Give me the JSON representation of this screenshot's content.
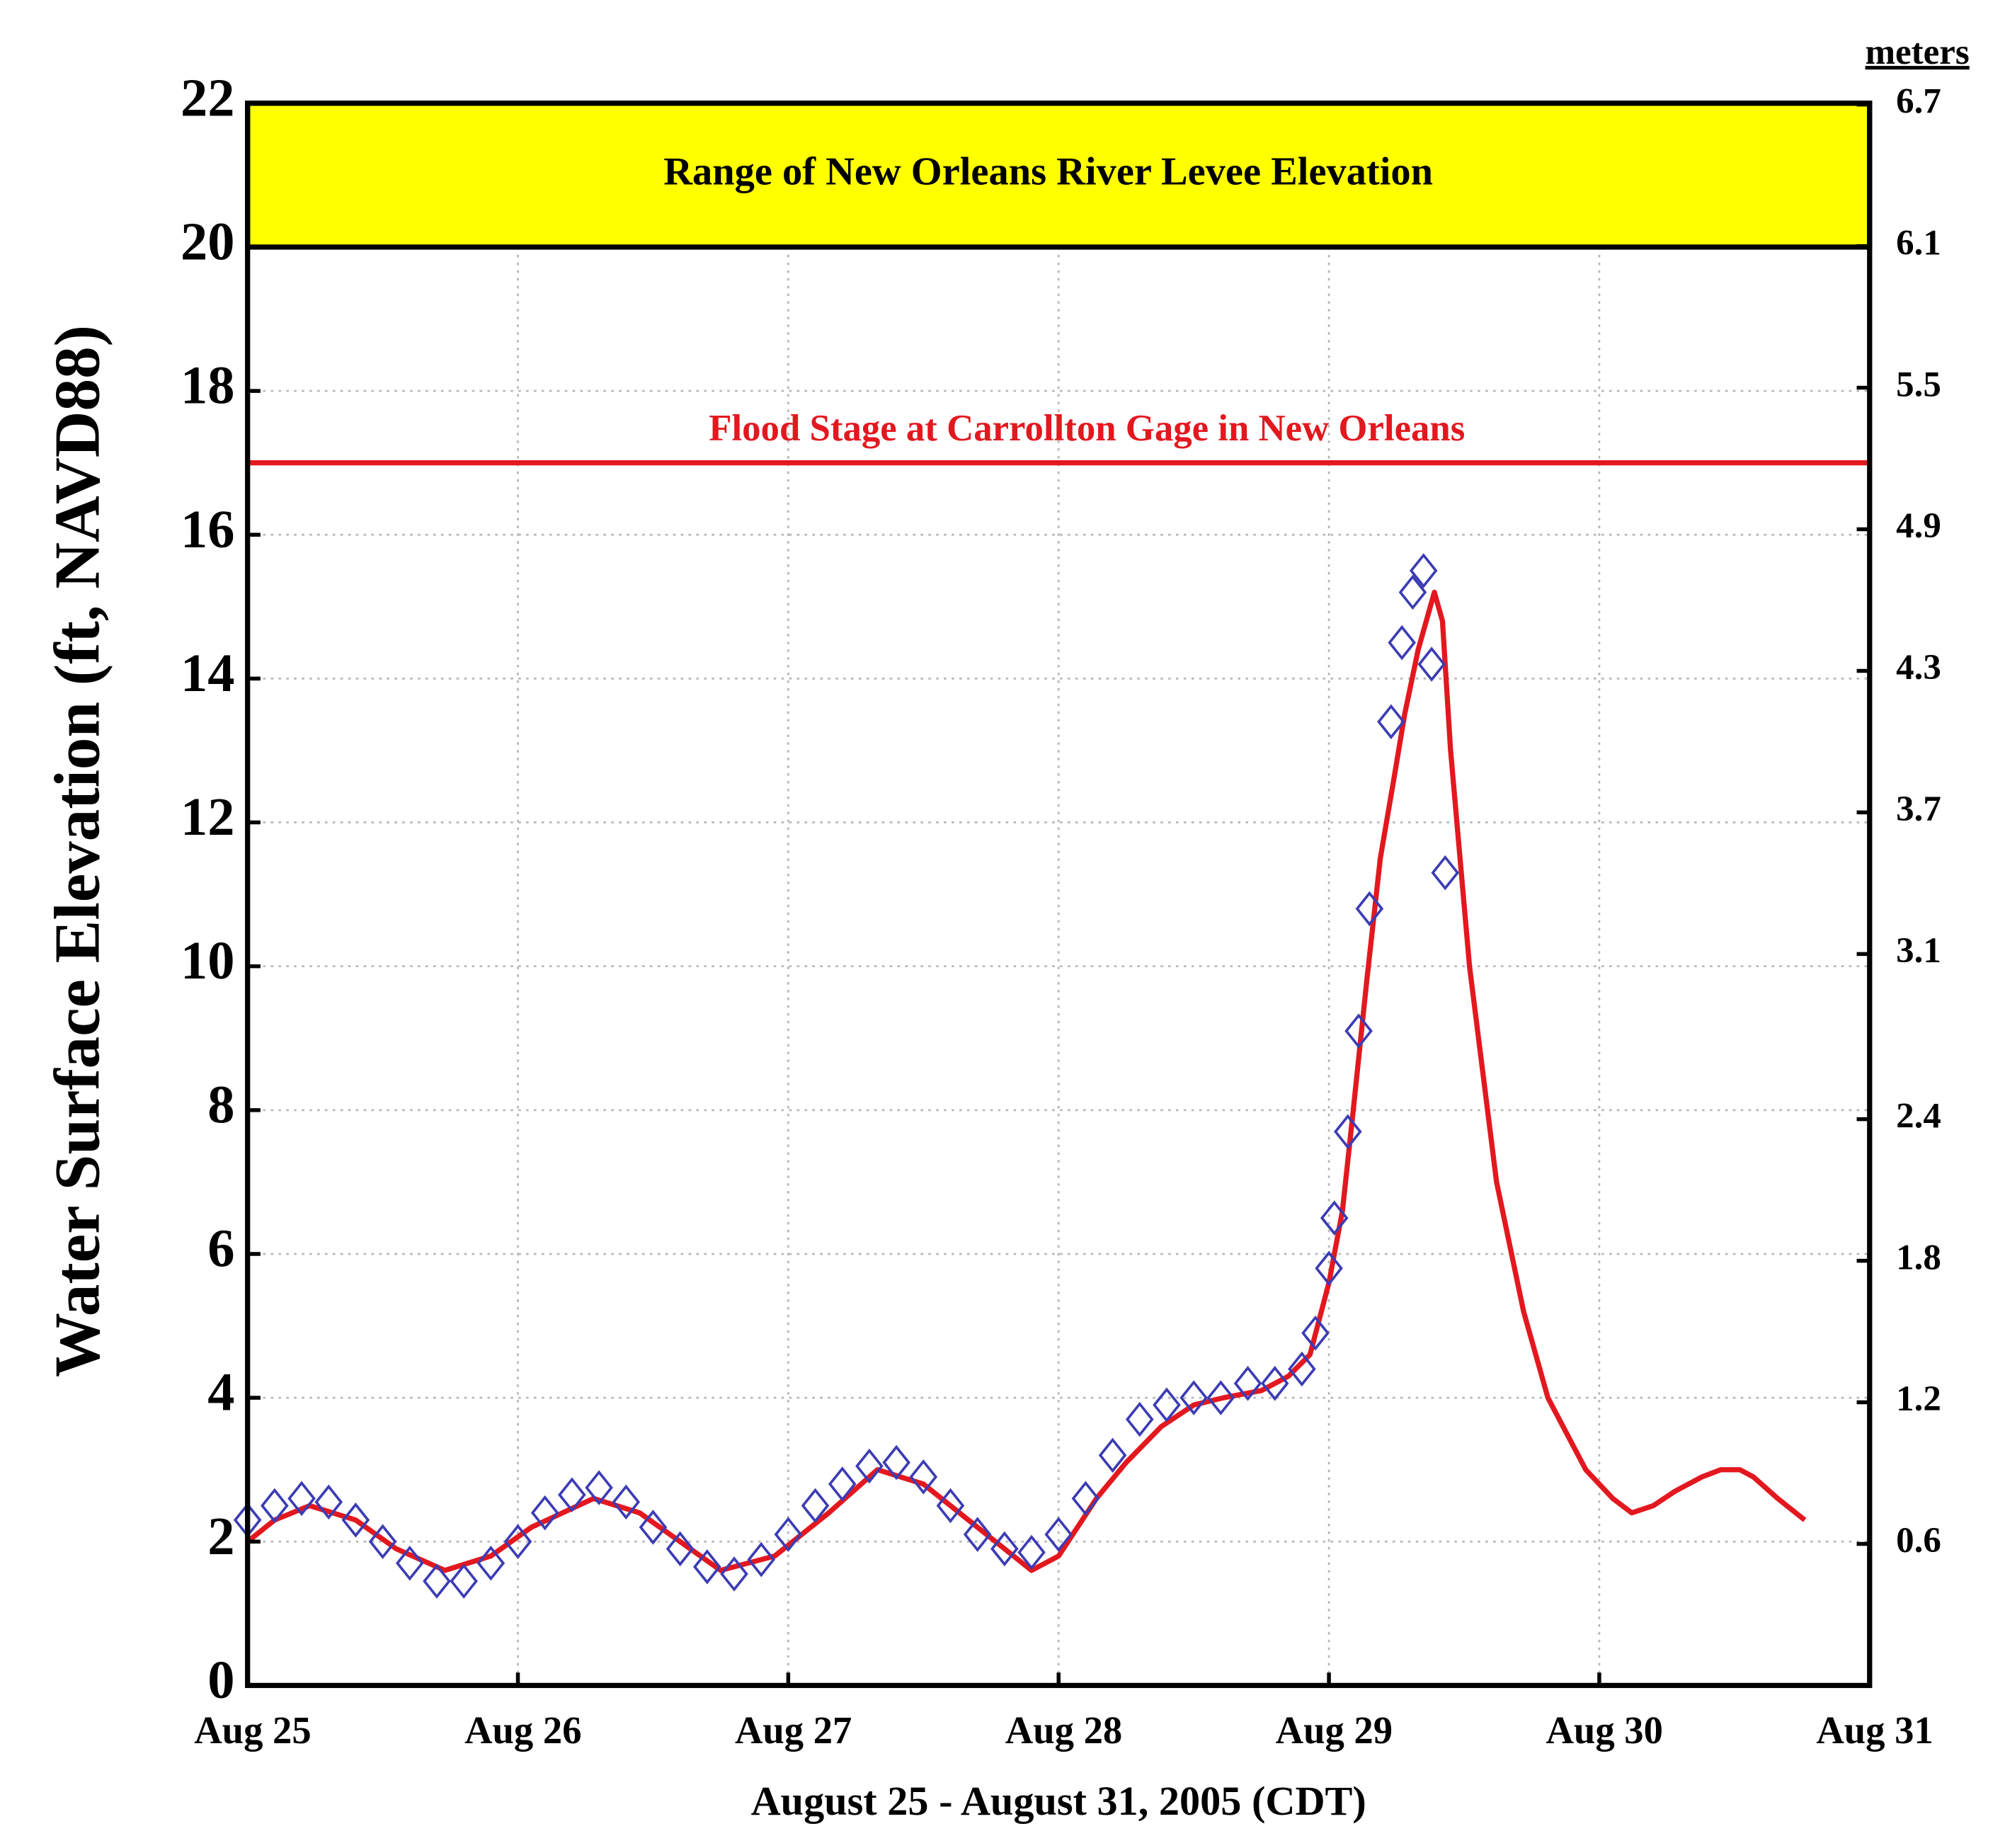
{
  "chart_data": {
    "type": "line",
    "ylabel": "Water Surface Elevation (ft, NAVD88)",
    "xlabel": "August 25 - August 31, 2005 (CDT)",
    "y2label": "meters",
    "xlim": [
      0,
      6
    ],
    "xticks": [
      {
        "value": 0,
        "label": "Aug 25"
      },
      {
        "value": 1,
        "label": "Aug 26"
      },
      {
        "value": 2,
        "label": "Aug 27"
      },
      {
        "value": 3,
        "label": "Aug 28"
      },
      {
        "value": 4,
        "label": "Aug 29"
      },
      {
        "value": 5,
        "label": "Aug 30"
      },
      {
        "value": 6,
        "label": "Aug 31"
      }
    ],
    "ylim": [
      0,
      22
    ],
    "yticks": [
      0,
      2,
      4,
      6,
      8,
      10,
      12,
      14,
      16,
      18,
      20,
      22
    ],
    "y2lim": [
      0,
      6.7056
    ],
    "y2ticks": [
      0.6,
      1.2,
      1.8,
      2.4,
      3.1,
      3.7,
      4.3,
      4.9,
      5.5,
      6.1,
      6.7
    ],
    "grid": true,
    "series": [
      {
        "type": "line",
        "color": "#e3181f",
        "x": [
          0,
          0.1,
          0.23,
          0.4,
          0.55,
          0.73,
          0.9,
          1.05,
          1.28,
          1.45,
          1.6,
          1.75,
          1.95,
          2.15,
          2.33,
          2.5,
          2.7,
          2.9,
          3.0,
          3.14,
          3.25,
          3.38,
          3.5,
          3.61,
          3.75,
          3.85,
          3.93,
          4.0,
          4.05,
          4.09,
          4.14,
          4.19,
          4.24,
          4.28,
          4.33,
          4.39,
          4.42,
          4.45,
          4.52,
          4.62,
          4.72,
          4.81,
          4.95,
          5.05,
          5.12,
          5.2,
          5.28,
          5.38,
          5.45,
          5.52,
          5.57,
          5.66,
          5.76
        ],
        "values": [
          2.0,
          2.3,
          2.5,
          2.3,
          1.9,
          1.6,
          1.8,
          2.2,
          2.6,
          2.4,
          2.0,
          1.6,
          1.8,
          2.4,
          3.0,
          2.8,
          2.2,
          1.6,
          1.8,
          2.6,
          3.1,
          3.6,
          3.9,
          4.0,
          4.1,
          4.3,
          4.6,
          5.6,
          6.6,
          8.0,
          9.8,
          11.5,
          12.6,
          13.5,
          14.4,
          15.2,
          14.8,
          13.0,
          10.0,
          7.0,
          5.2,
          4.0,
          3.0,
          2.6,
          2.4,
          2.5,
          2.7,
          2.9,
          3.0,
          3.0,
          2.9,
          2.6,
          2.3
        ]
      },
      {
        "type": "scatter",
        "marker": "diamond",
        "color": "#3c3cb4",
        "x": [
          0,
          0.1,
          0.2,
          0.3,
          0.4,
          0.5,
          0.6,
          0.7,
          0.8,
          0.9,
          1.0,
          1.1,
          1.2,
          1.3,
          1.4,
          1.5,
          1.6,
          1.7,
          1.8,
          1.9,
          2.0,
          2.1,
          2.2,
          2.3,
          2.4,
          2.5,
          2.6,
          2.7,
          2.8,
          2.9,
          3.0,
          3.1,
          3.2,
          3.3,
          3.4,
          3.5,
          3.6,
          3.7,
          3.8,
          3.9,
          3.95,
          4.0,
          4.02,
          4.07,
          4.11,
          4.15,
          4.23,
          4.27,
          4.31,
          4.35,
          4.38,
          4.43
        ],
        "values": [
          2.3,
          2.5,
          2.6,
          2.55,
          2.3,
          2.0,
          1.7,
          1.45,
          1.45,
          1.7,
          2.0,
          2.4,
          2.65,
          2.75,
          2.55,
          2.2,
          1.9,
          1.65,
          1.55,
          1.75,
          2.1,
          2.5,
          2.8,
          3.05,
          3.1,
          2.9,
          2.5,
          2.1,
          1.9,
          1.85,
          2.1,
          2.6,
          3.2,
          3.7,
          3.9,
          4.0,
          4.0,
          4.2,
          4.2,
          4.4,
          4.9,
          5.8,
          6.5,
          7.7,
          9.1,
          10.8,
          13.4,
          14.5,
          15.2,
          15.5,
          14.2,
          11.3
        ]
      }
    ],
    "annotations": [
      {
        "text": "Range of New Orleans River Levee Elevation",
        "y_range": [
          20,
          22
        ],
        "color": "#ffff00"
      },
      {
        "text": "Flood Stage at Carrollton Gage in New Orleans",
        "y": 17,
        "color": "#e3181f"
      }
    ]
  }
}
